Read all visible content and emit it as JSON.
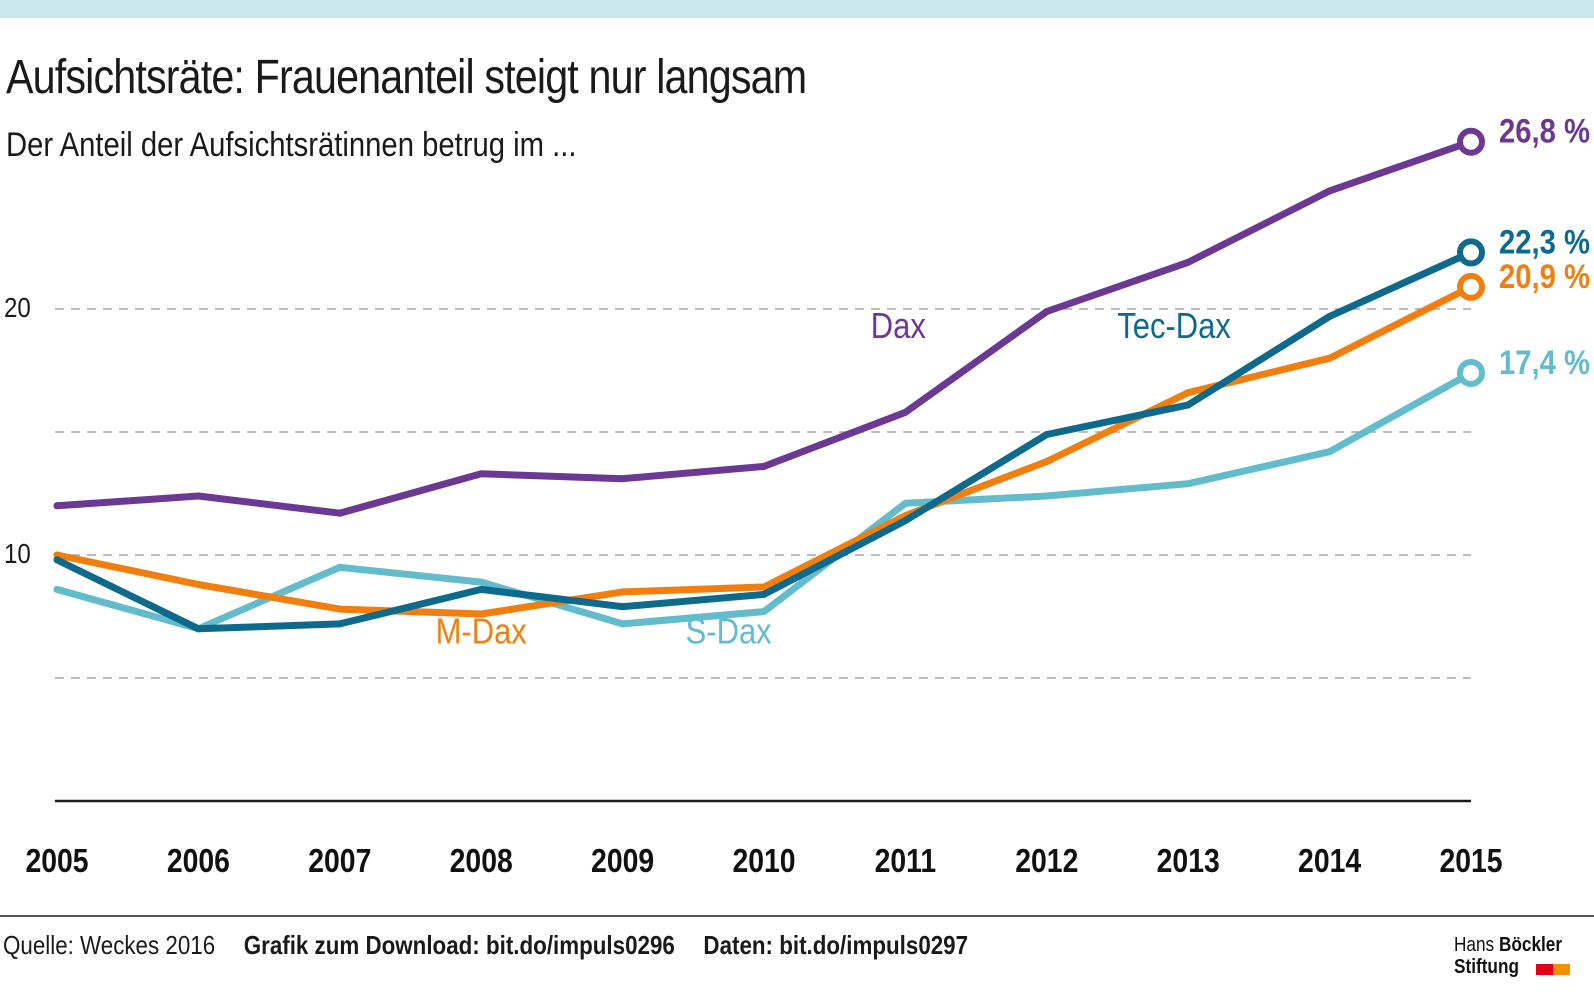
{
  "header": {
    "title": "Aufsichtsräte: Frauenanteil steigt nur langsam",
    "subtitle": "Der Anteil der Aufsichtsrätinnen betrug im ..."
  },
  "footer": {
    "source": "Quelle: Weckes 2016",
    "download": "Grafik zum Download: bit.do/impuls0296",
    "data_link": "Daten: bit.do/impuls0297"
  },
  "logo": {
    "line1_a": "Hans",
    "line1_b": "Böckler",
    "line2": "Stiftung",
    "colors": [
      "#e2001a",
      "#f39200"
    ]
  },
  "chart_data": {
    "type": "line",
    "title": "Aufsichtsräte: Frauenanteil steigt nur langsam",
    "subtitle": "Der Anteil der Aufsichtsrätinnen betrug im ...",
    "xlabel": "",
    "ylabel": "",
    "x": [
      "2005",
      "2006",
      "2007",
      "2008",
      "2009",
      "2010",
      "2011",
      "2012",
      "2013",
      "2014",
      "2015"
    ],
    "ylim": [
      0,
      30
    ],
    "yticks": [
      5,
      10,
      15,
      20
    ],
    "ytick_labels": [
      "",
      "10",
      "",
      "20"
    ],
    "grid": "horizontal-dashed",
    "series": [
      {
        "name": "S-Dax",
        "color": "#62bccc",
        "values": [
          8.6,
          7.0,
          9.5,
          8.9,
          7.2,
          7.7,
          12.1,
          12.4,
          12.9,
          14.2,
          17.4
        ],
        "end_label": "17,4 %",
        "label_pos": {
          "x": 2009.75,
          "y": 6.9
        }
      },
      {
        "name": "M-Dax",
        "color": "#f07f10",
        "values": [
          10.0,
          8.8,
          7.8,
          7.6,
          8.5,
          8.7,
          11.6,
          13.8,
          16.6,
          18.0,
          20.9
        ],
        "end_label": "20,9 %",
        "label_pos": {
          "x": 2008.0,
          "y": 6.9
        }
      },
      {
        "name": "Tec-Dax",
        "color": "#0e6a8c",
        "values": [
          9.8,
          7.0,
          7.2,
          8.6,
          7.9,
          8.4,
          11.4,
          14.9,
          16.1,
          19.7,
          22.3
        ],
        "end_label": "22,3 %",
        "label_pos": {
          "x": 2012.9,
          "y": 19.3
        }
      },
      {
        "name": "Dax",
        "color": "#6b3893",
        "values": [
          12.0,
          12.4,
          11.7,
          13.3,
          13.1,
          13.6,
          15.8,
          19.9,
          21.9,
          24.8,
          26.8
        ],
        "end_label": "26,8 %",
        "label_pos": {
          "x": 2010.95,
          "y": 19.3
        }
      }
    ]
  }
}
